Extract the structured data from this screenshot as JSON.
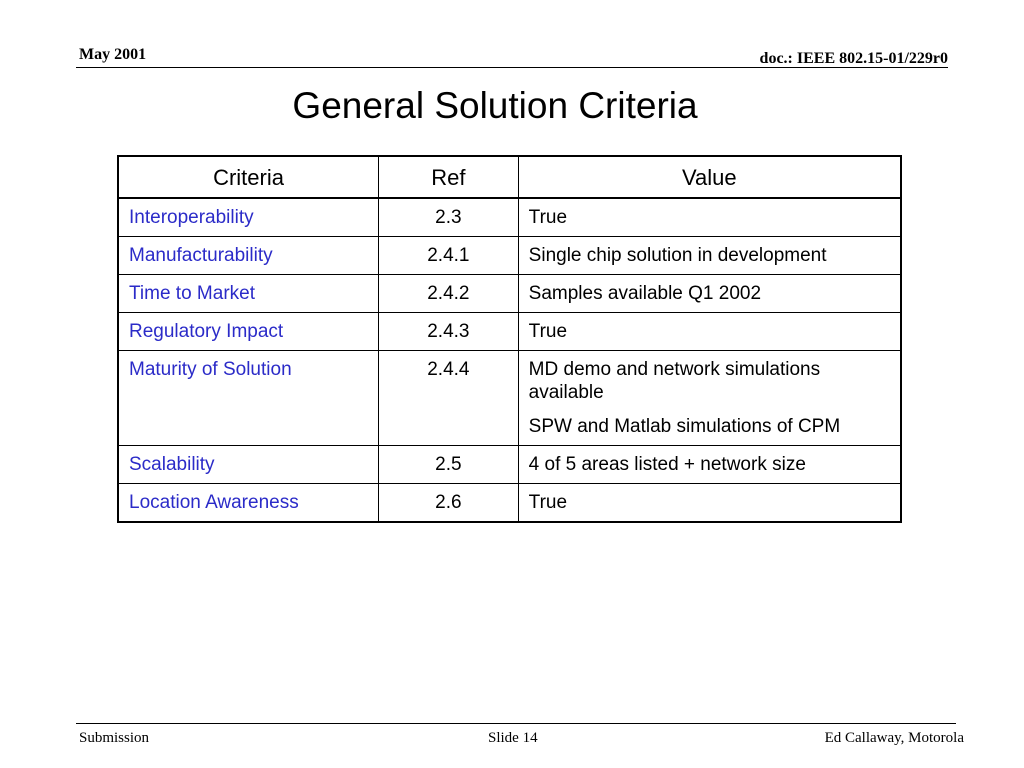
{
  "header": {
    "date": "May 2001",
    "doc_id": "doc.: IEEE 802.15-01/229r0"
  },
  "slide": {
    "title": "General Solution Criteria"
  },
  "table": {
    "columns": [
      "Criteria",
      "Ref",
      "Value"
    ],
    "rows": [
      {
        "criteria": "Interoperability",
        "ref": "2.3",
        "value": [
          "True"
        ]
      },
      {
        "criteria": "Manufacturability",
        "ref": "2.4.1",
        "value": [
          "Single chip solution in development"
        ]
      },
      {
        "criteria": "Time to Market",
        "ref": "2.4.2",
        "value": [
          "Samples available Q1 2002"
        ]
      },
      {
        "criteria": "Regulatory Impact",
        "ref": "2.4.3",
        "value": [
          "True"
        ]
      },
      {
        "criteria": "Maturity of Solution",
        "ref": "2.4.4",
        "value": [
          "MD demo and network simulations available",
          "SPW and Matlab simulations of CPM"
        ]
      },
      {
        "criteria": "Scalability",
        "ref": "2.5",
        "value": [
          "4 of 5 areas listed + network size"
        ]
      },
      {
        "criteria": "Location Awareness",
        "ref": "2.6",
        "value": [
          "True"
        ]
      }
    ]
  },
  "footer": {
    "left": "Submission",
    "center": "Slide 14",
    "right": "Ed Callaway, Motorola"
  },
  "colors": {
    "criteria_text": "#2b2bc8",
    "text": "#000000",
    "background": "#ffffff"
  }
}
